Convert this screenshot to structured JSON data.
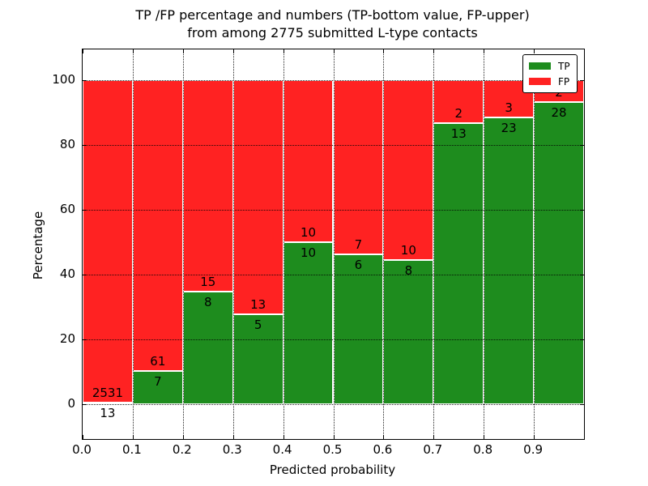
{
  "title": {
    "line1": "TP /FP percentage and numbers (TP-bottom value, FP-upper)",
    "line2": "from among 2775 submitted L-type contacts"
  },
  "axes": {
    "xlabel": "Predicted probability",
    "ylabel": "Percentage",
    "xticks": [
      "0.0",
      "0.1",
      "0.2",
      "0.3",
      "0.4",
      "0.5",
      "0.6",
      "0.7",
      "0.8",
      "0.9"
    ],
    "yticks": [
      "0",
      "20",
      "40",
      "60",
      "80",
      "100"
    ]
  },
  "legend": {
    "items": [
      {
        "label": "TP",
        "color": "#1e8c1e"
      },
      {
        "label": "FP",
        "color": "#ff2222"
      }
    ]
  },
  "colors": {
    "tp": "#1e8c1e",
    "fp": "#ff2222",
    "bar_edge": "#ffffff",
    "grid": "#000000",
    "background": "#ffffff"
  },
  "chart_data": {
    "type": "bar",
    "stacked": true,
    "normalized_to_percent": true,
    "title": "TP /FP percentage and numbers (TP-bottom value, FP-upper) from among 2775 submitted L-type contacts",
    "xlabel": "Predicted probability",
    "ylabel": "Percentage",
    "xlim": [
      0.0,
      1.0
    ],
    "ylim": [
      -10,
      110
    ],
    "yticks": [
      0,
      20,
      40,
      60,
      80,
      100
    ],
    "grid": "dotted, both axes, drawn over bars",
    "legend_position": "upper right",
    "bin_width": 0.1,
    "total_contacts": 2775,
    "series": [
      {
        "name": "TP",
        "color": "#1e8c1e",
        "counts": [
          13,
          7,
          8,
          5,
          10,
          6,
          8,
          13,
          23,
          28
        ]
      },
      {
        "name": "FP",
        "color": "#ff2222",
        "counts": [
          2531,
          61,
          15,
          13,
          10,
          7,
          10,
          2,
          3,
          2
        ]
      }
    ],
    "bins": [
      {
        "x_start": 0.0,
        "x_end": 0.1,
        "tp": 13,
        "fp": 2531,
        "tp_pct": 0.51,
        "fp_pct": 99.49
      },
      {
        "x_start": 0.1,
        "x_end": 0.2,
        "tp": 7,
        "fp": 61,
        "tp_pct": 10.29,
        "fp_pct": 89.71
      },
      {
        "x_start": 0.2,
        "x_end": 0.3,
        "tp": 8,
        "fp": 15,
        "tp_pct": 34.78,
        "fp_pct": 65.22
      },
      {
        "x_start": 0.3,
        "x_end": 0.4,
        "tp": 5,
        "fp": 13,
        "tp_pct": 27.78,
        "fp_pct": 72.22
      },
      {
        "x_start": 0.4,
        "x_end": 0.5,
        "tp": 10,
        "fp": 10,
        "tp_pct": 50.0,
        "fp_pct": 50.0
      },
      {
        "x_start": 0.5,
        "x_end": 0.6,
        "tp": 6,
        "fp": 7,
        "tp_pct": 46.15,
        "fp_pct": 53.85
      },
      {
        "x_start": 0.6,
        "x_end": 0.7,
        "tp": 8,
        "fp": 10,
        "tp_pct": 44.44,
        "fp_pct": 55.56
      },
      {
        "x_start": 0.7,
        "x_end": 0.8,
        "tp": 13,
        "fp": 2,
        "tp_pct": 86.67,
        "fp_pct": 13.33
      },
      {
        "x_start": 0.8,
        "x_end": 0.9,
        "tp": 23,
        "fp": 3,
        "tp_pct": 88.46,
        "fp_pct": 11.54
      },
      {
        "x_start": 0.9,
        "x_end": 1.0,
        "tp": 28,
        "fp": 2,
        "tp_pct": 93.33,
        "fp_pct": 6.67
      }
    ]
  }
}
